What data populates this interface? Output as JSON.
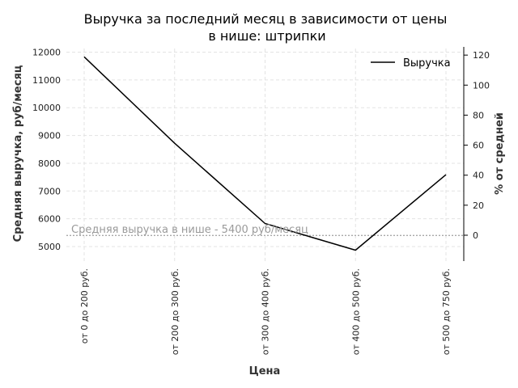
{
  "chart_data": {
    "type": "line",
    "title_line1": "Выручка за последний месяц в зависимости от цены",
    "title_line2": "в нише: штрипки",
    "xlabel": "Цена",
    "ylabel": "Средняя выручка, руб/месяц",
    "ylabel_right": "% от средней",
    "categories": [
      "от 0 до 200 руб.",
      "от 200 до 300 руб.",
      "от 300 до 400 руб.",
      "от 400 до 500 руб.",
      "от 500 до 750 руб."
    ],
    "series": [
      {
        "name": "Выручка",
        "values": [
          11830,
          8720,
          5830,
          4870,
          7590
        ],
        "color": "#000000"
      }
    ],
    "average": 5400,
    "average_label": "Средняя выручка в нише - 5400 руб/месяц",
    "yticks": [
      "5000",
      "6000",
      "7000",
      "8000",
      "9000",
      "10000",
      "11000",
      "12000"
    ],
    "yticks_right": [
      "0",
      "20",
      "40",
      "60",
      "80",
      "100",
      "120"
    ],
    "ylim": [
      4400,
      12200
    ],
    "grid": true,
    "legend_position": "top-right"
  }
}
